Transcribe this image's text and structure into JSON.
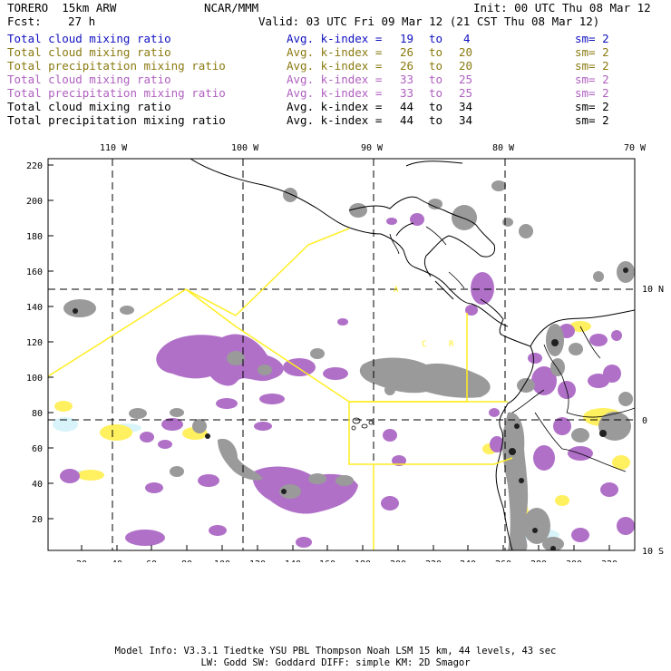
{
  "header": {
    "model": "TORERO  15km ARW",
    "org": "NCAR/MMM",
    "init": "Init: 00 UTC Thu 08 Mar 12",
    "fcst_label": "Fcst:",
    "fcst_value": "27 h",
    "valid": "Valid: 03 UTC Fri 09 Mar 12 (21 CST Thu 08 Mar 12)"
  },
  "legend": [
    {
      "field": "Total cloud mixing ratio",
      "kidx": "Avg. k-index =",
      "lo": "19",
      "to": "to",
      "hi": "4",
      "sm": "sm= 2",
      "color": "#1010c0"
    },
    {
      "field": "Total cloud mixing ratio",
      "kidx": "Avg. k-index =",
      "lo": "26",
      "to": "to",
      "hi": "20",
      "sm": "sm= 2",
      "color": "#8a7a10"
    },
    {
      "field": "Total precipitation mixing ratio",
      "kidx": "Avg. k-index =",
      "lo": "26",
      "to": "to",
      "hi": "20",
      "sm": "sm= 2",
      "color": "#8a7a10"
    },
    {
      "field": "Total cloud mixing ratio",
      "kidx": "Avg. k-index =",
      "lo": "33",
      "to": "to",
      "hi": "25",
      "sm": "sm= 2",
      "color": "#b060c0"
    },
    {
      "field": "Total precipitation mixing ratio",
      "kidx": "Avg. k-index =",
      "lo": "33",
      "to": "to",
      "hi": "25",
      "sm": "sm= 2",
      "color": "#b060c0"
    },
    {
      "field": "Total cloud mixing ratio",
      "kidx": "Avg. k-index =",
      "lo": "44",
      "to": "to",
      "hi": "34",
      "sm": "sm= 2",
      "color": "#000000"
    },
    {
      "field": "Total precipitation mixing ratio",
      "kidx": "Avg. k-index =",
      "lo": "44",
      "to": "to",
      "hi": "34",
      "sm": "sm= 2",
      "color": "#000000"
    }
  ],
  "map": {
    "lon_labels": [
      "110 W",
      "100 W",
      "90 W",
      "80 W",
      "70 W"
    ],
    "lat_labels": [
      "10 N",
      "0",
      "10 S"
    ],
    "y_ticks": [
      "220",
      "200",
      "180",
      "160",
      "140",
      "120",
      "100",
      "80",
      "60",
      "40",
      "20"
    ],
    "x_ticks": [
      "20",
      "40",
      "60",
      "80",
      "100",
      "120",
      "140",
      "160",
      "180",
      "200",
      "220",
      "240",
      "260",
      "280",
      "300",
      "320"
    ],
    "colors": {
      "purple": "#b070c8",
      "gray": "#9a9a9a",
      "yellow": "#fff060",
      "cyan": "#d8f4fa",
      "domain": "#ffee22"
    },
    "legend_glyph_a": "A",
    "legend_glyph_c": "C",
    "legend_glyph_r": "R"
  },
  "footer": {
    "line1": "Model Info: V3.3.1   Tiedtke YSU PBL  Thompson    Noah LSM  15 km,   44 levels,   43 sec",
    "line2": "LW: Godd SW: Goddard DIFF: simple KM: 2D Smagor"
  }
}
